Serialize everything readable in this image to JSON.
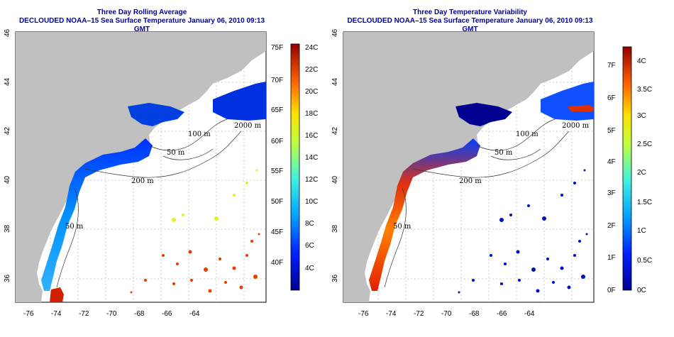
{
  "left_panel": {
    "title_line1": "Three Day Rolling Average",
    "title_line2": "DECLOUDED NOAA–15 Sea Surface Temperature January 06, 2010 09:13 GMT",
    "colorbar": {
      "f_labels": [
        "75F",
        "70F",
        "65F",
        "60F",
        "55F",
        "50F",
        "45F",
        "40F"
      ],
      "c_labels": [
        "24C",
        "22C",
        "20C",
        "18C",
        "16C",
        "14C",
        "12C",
        "10C",
        "8C",
        "6C",
        "4C"
      ]
    }
  },
  "right_panel": {
    "title_line1": "Three Day Temperature Variability",
    "title_line2": "DECLOUDED NOAA–15 Sea Surface Temperature January 06, 2010 09:13 GMT",
    "colorbar": {
      "f_labels": [
        "7F",
        "6F",
        "5F",
        "4F",
        "3F",
        "2F",
        "1F",
        "0F"
      ],
      "c_labels": [
        "4C",
        "3.5C",
        "3C",
        "2.5C",
        "2C",
        "1.5C",
        "1C",
        "0.5C",
        "0C"
      ]
    }
  },
  "axes": {
    "lon_ticks": [
      "-76",
      "-74",
      "-72",
      "-70",
      "-68",
      "-66",
      "-64"
    ],
    "lat_ticks": [
      "36",
      "38",
      "40",
      "42",
      "44",
      "46"
    ]
  },
  "isobath_labels": [
    "2000 m",
    "100 m",
    "50 m",
    "200 m",
    "50 m"
  ],
  "colors": {
    "title": "#0000a0",
    "land": "#c0c0c0",
    "grid": "#bbbbbb"
  }
}
